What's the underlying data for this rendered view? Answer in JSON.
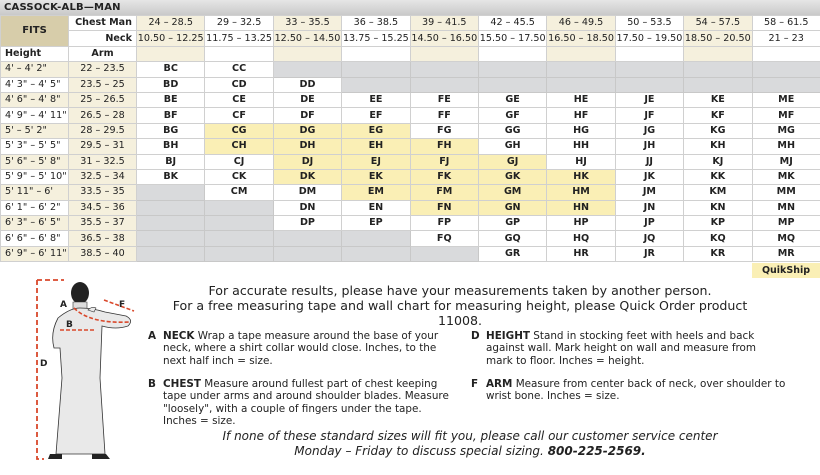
{
  "title": "CASSOCK-ALB—MAN",
  "header": {
    "fits_label": "FITS",
    "chest_label": "Chest Man",
    "neck_label": "Neck",
    "height_label": "Height",
    "arm_label": "Arm",
    "chest": [
      "24 – 28.5",
      "29 – 32.5",
      "33 – 35.5",
      "36 – 38.5",
      "39 – 41.5",
      "42 – 45.5",
      "46 – 49.5",
      "50 – 53.5",
      "54 – 57.5",
      "58 – 61.5"
    ],
    "neck": [
      "10.50 – 12.25",
      "11.75 – 13.25",
      "12.50 – 14.50",
      "13.75 – 15.25",
      "14.50 – 16.50",
      "15.50 – 17.50",
      "16.50 – 18.50",
      "17.50 – 19.50",
      "18.50 – 20.50",
      "21 – 23"
    ]
  },
  "rows": [
    {
      "height": "4' – 4' 2\"",
      "arm": "22 – 23.5",
      "cells": [
        "BC",
        "CC",
        null,
        null,
        null,
        null,
        null,
        null,
        null,
        null
      ]
    },
    {
      "height": "4' 3\" – 4' 5\"",
      "arm": "23.5 – 25",
      "cells": [
        "BD",
        "CD",
        "DD",
        null,
        null,
        null,
        null,
        null,
        null,
        null
      ]
    },
    {
      "height": "4' 6\" – 4' 8\"",
      "arm": "25 – 26.5",
      "cells": [
        "BE",
        "CE",
        "DE",
        "EE",
        "FE",
        "GE",
        "HE",
        "JE",
        "KE",
        "ME"
      ]
    },
    {
      "height": "4' 9\" – 4' 11\"",
      "arm": "26.5 – 28",
      "cells": [
        "BF",
        "CF",
        "DF",
        "EF",
        "FF",
        "GF",
        "HF",
        "JF",
        "KF",
        "MF"
      ]
    },
    {
      "height": "5' – 5' 2\"",
      "arm": "28 – 29.5",
      "cells": [
        "BG",
        "CG",
        "DG",
        "EG",
        "FG",
        "GG",
        "HG",
        "JG",
        "KG",
        "MG"
      ]
    },
    {
      "height": "5' 3\" – 5' 5\"",
      "arm": "29.5 – 31",
      "cells": [
        "BH",
        "CH",
        "DH",
        "EH",
        "FH",
        "GH",
        "HH",
        "JH",
        "KH",
        "MH"
      ]
    },
    {
      "height": "5' 6\" – 5' 8\"",
      "arm": "31 – 32.5",
      "cells": [
        "BJ",
        "CJ",
        "DJ",
        "EJ",
        "FJ",
        "GJ",
        "HJ",
        "JJ",
        "KJ",
        "MJ"
      ]
    },
    {
      "height": "5' 9\" – 5' 10\"",
      "arm": "32.5 – 34",
      "cells": [
        "BK",
        "CK",
        "DK",
        "EK",
        "FK",
        "GK",
        "HK",
        "JK",
        "KK",
        "MK"
      ]
    },
    {
      "height": "5' 11\" – 6'",
      "arm": "33.5 – 35",
      "cells": [
        null,
        "CM",
        "DM",
        "EM",
        "FM",
        "GM",
        "HM",
        "JM",
        "KM",
        "MM"
      ]
    },
    {
      "height": "6' 1\" – 6' 2\"",
      "arm": "34.5 – 36",
      "cells": [
        null,
        null,
        "DN",
        "EN",
        "FN",
        "GN",
        "HN",
        "JN",
        "KN",
        "MN"
      ]
    },
    {
      "height": "6' 3\" – 6' 5\"",
      "arm": "35.5 – 37",
      "cells": [
        null,
        null,
        "DP",
        "EP",
        "FP",
        "GP",
        "HP",
        "JP",
        "KP",
        "MP"
      ]
    },
    {
      "height": "6' 6\" – 6' 8\"",
      "arm": "36.5 – 38",
      "cells": [
        null,
        null,
        null,
        null,
        "FQ",
        "GQ",
        "HQ",
        "JQ",
        "KQ",
        "MQ"
      ]
    },
    {
      "height": "6' 9\" – 6' 11\"",
      "arm": "38.5 – 40",
      "cells": [
        null,
        null,
        null,
        null,
        null,
        "GR",
        "HR",
        "JR",
        "KR",
        "MR"
      ]
    }
  ],
  "quikship_codes": [
    "CG",
    "DG",
    "EG",
    "CH",
    "DH",
    "EH",
    "FH",
    "DJ",
    "EJ",
    "FJ",
    "GJ",
    "DK",
    "EK",
    "FK",
    "GK",
    "HK",
    "EM",
    "FM",
    "GM",
    "HM",
    "FN",
    "GN",
    "HN"
  ],
  "quikship_label": "QuikShip",
  "colors": {
    "quikship": "#faefb5",
    "cream": "#f5f0dd",
    "unavailable": "#d9dadc",
    "fits": "#d7cdaa",
    "measure_line": "#d9482b"
  },
  "intro": {
    "line1": "For accurate results, please have your measurements taken by another person.",
    "line2": "For a free measuring tape and wall chart for measuring height, please Quick Order product 11008."
  },
  "figure_labels": {
    "a": "A",
    "b": "B",
    "d": "D",
    "f": "F"
  },
  "instructions": [
    {
      "letter": "A",
      "title": "NECK",
      "text": " Wrap a tape measure around the base of your neck, where a shirt collar would close. Inches, to the next half inch = size."
    },
    {
      "letter": "B",
      "title": "CHEST",
      "text": " Measure around fullest part of chest keeping tape under arms and around shoulder blades. Measure \"loosely\", with a couple of fingers under the tape. Inches = size."
    },
    {
      "letter": "D",
      "title": "HEIGHT",
      "text": " Stand in stocking feet with heels and back against wall. Mark height on wall and measure from mark to floor. Inches = height."
    },
    {
      "letter": "F",
      "title": "ARM",
      "text": " Measure from center back of neck, over shoulder to wrist bone. Inches = size."
    }
  ],
  "footer": {
    "line1": "If none of these standard sizes will fit you, please call our customer service center",
    "line2_prefix": "Monday – Friday to discuss special sizing. ",
    "phone": "800-225-2569."
  }
}
